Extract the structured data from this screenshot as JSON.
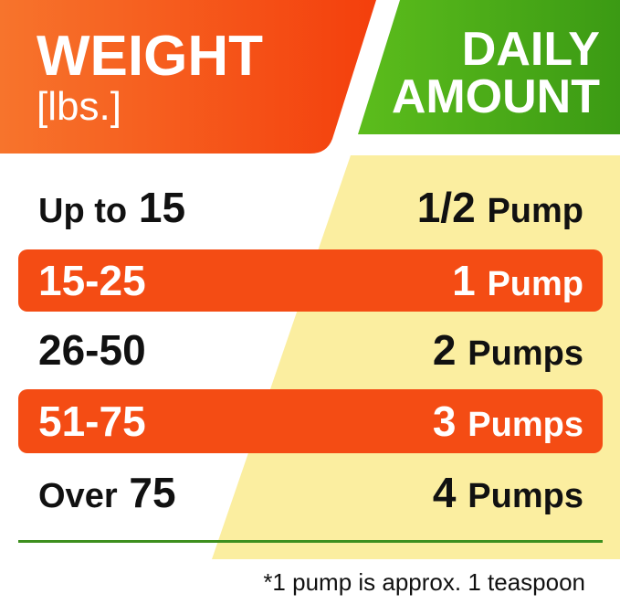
{
  "header": {
    "weight_title": "WEIGHT",
    "weight_unit": "[lbs.]",
    "amount_line1": "DAILY",
    "amount_line2": "AMOUNT"
  },
  "rows": [
    {
      "weight_prefix": "Up to",
      "weight_value": "15",
      "amount_value": "1/2",
      "amount_unit": "Pump",
      "highlighted": false
    },
    {
      "weight_prefix": "",
      "weight_value": "15-25",
      "amount_value": "1",
      "amount_unit": "Pump",
      "highlighted": true
    },
    {
      "weight_prefix": "",
      "weight_value": "26-50",
      "amount_value": "2",
      "amount_unit": "Pumps",
      "highlighted": false
    },
    {
      "weight_prefix": "",
      "weight_value": "51-75",
      "amount_value": "3",
      "amount_unit": "Pumps",
      "highlighted": true
    },
    {
      "weight_prefix": "Over",
      "weight_value": "75",
      "amount_value": "4",
      "amount_unit": "Pumps",
      "highlighted": false
    }
  ],
  "footnote": "*1 pump is approx. 1 teaspoon",
  "colors": {
    "orange": "#f44c14",
    "green": "#4caf1c",
    "yellow": "#fbeea0",
    "line": "#3d8f1e"
  }
}
